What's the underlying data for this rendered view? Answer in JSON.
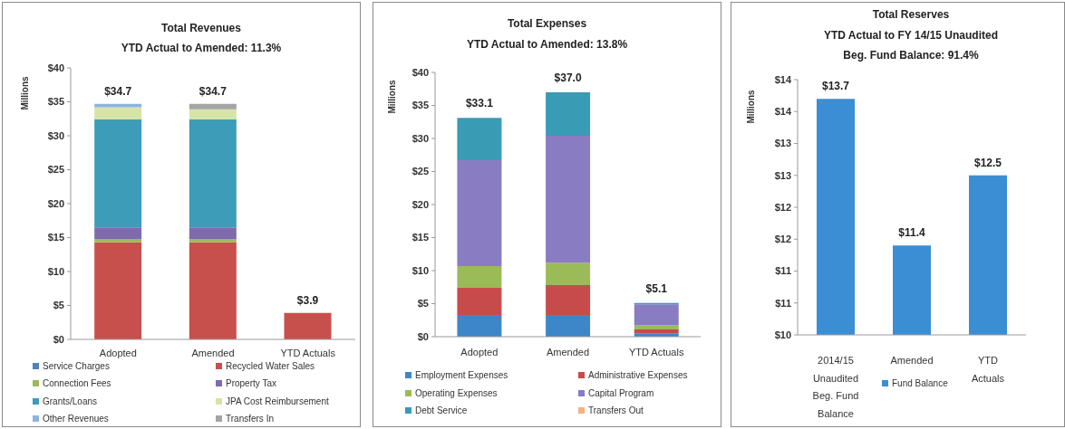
{
  "chart_data": [
    {
      "type": "bar",
      "title": "Total Revenues",
      "subtitle": "YTD Actual to Amended: 11.3%",
      "ylabel": "Millions",
      "categories": [
        "Adopted",
        "Amended",
        "YTD Actuals"
      ],
      "stacked": true,
      "series": [
        {
          "name": "Service Charges",
          "color": "#4f81bd",
          "values": [
            null,
            null,
            null
          ]
        },
        {
          "name": "Recycled Water Sales",
          "color": "#c74f4c",
          "values": [
            14.3,
            14.3,
            3.9
          ]
        },
        {
          "name": "Connection Fees",
          "color": "#9bbb59",
          "values": [
            0.5,
            0.5,
            null
          ]
        },
        {
          "name": "Property Tax",
          "color": "#7f6ab0",
          "values": [
            1.7,
            1.7,
            null
          ]
        },
        {
          "name": "Grants/Loans",
          "color": "#3d9cb8",
          "values": [
            15.9,
            15.9,
            null
          ]
        },
        {
          "name": "JPA Cost Reimbursement",
          "color": "#d7e4a8",
          "values": [
            1.8,
            1.5,
            null
          ]
        },
        {
          "name": "Other Revenues",
          "color": "#8db3e2",
          "values": [
            0.5,
            null,
            null
          ]
        },
        {
          "name": "Transfers In",
          "color": "#a5a5a5",
          "values": [
            null,
            0.8,
            null
          ]
        }
      ],
      "ylim": [
        0,
        40
      ],
      "yticks": [
        {
          "value": 0,
          "label": "$0"
        },
        {
          "value": 5,
          "label": "$5"
        },
        {
          "value": 10,
          "label": "$10"
        },
        {
          "value": 15,
          "label": "$15"
        },
        {
          "value": 20,
          "label": "$20"
        },
        {
          "value": 25,
          "label": "$25"
        },
        {
          "value": 30,
          "label": "$30"
        },
        {
          "value": 35,
          "label": "$35"
        },
        {
          "value": 40,
          "label": "$40"
        }
      ],
      "totals": [
        "$34.7",
        "$34.7",
        "$3.9"
      ],
      "legend": "bottom"
    },
    {
      "type": "bar",
      "title": "Total Expenses",
      "subtitle": "YTD Actual to Amended: 13.8%",
      "ylabel": "Millions",
      "categories": [
        "Adopted",
        "Amended",
        "YTD Actuals"
      ],
      "stacked": true,
      "series": [
        {
          "name": "Employment Expenses",
          "color": "#3d87c9",
          "values": [
            3.3,
            3.3,
            0.5
          ]
        },
        {
          "name": "Administrative Expenses",
          "color": "#c84b4b",
          "values": [
            4.1,
            4.5,
            0.6
          ]
        },
        {
          "name": "Operating Expenses",
          "color": "#9bbb59",
          "values": [
            3.3,
            3.4,
            0.6
          ]
        },
        {
          "name": "Capital Program",
          "color": "#8a7cc2",
          "values": [
            16.0,
            19.2,
            3.2
          ]
        },
        {
          "name": "Debt Service",
          "color": "#3a9bb5",
          "values": [
            6.4,
            6.6,
            0.2
          ]
        },
        {
          "name": "Transfers Out",
          "color": "#f4b183",
          "values": [
            null,
            null,
            null
          ]
        }
      ],
      "ylim": [
        0,
        40
      ],
      "yticks": [
        {
          "value": 0,
          "label": "$0"
        },
        {
          "value": 5,
          "label": "$5"
        },
        {
          "value": 10,
          "label": "$10"
        },
        {
          "value": 15,
          "label": "$15"
        },
        {
          "value": 20,
          "label": "$20"
        },
        {
          "value": 25,
          "label": "$25"
        },
        {
          "value": 30,
          "label": "$30"
        },
        {
          "value": 35,
          "label": "$35"
        },
        {
          "value": 40,
          "label": "$40"
        }
      ],
      "totals": [
        "$33.1",
        "$37.0",
        "$5.1"
      ],
      "legend": "bottom"
    },
    {
      "type": "bar",
      "title": "Total Reserves",
      "subtitle": "YTD Actual to FY 14/15 Unaudited Beg. Fund Balance: 91.4%",
      "ylabel": "Millions",
      "categories": [
        "2014/15 Unaudited Beg. Fund Balance",
        "Amended",
        "YTD Actuals"
      ],
      "series": [
        {
          "name": "Fund Balance",
          "color": "#3b8ed3",
          "values": [
            13.7,
            11.4,
            12.5
          ],
          "value_labels": [
            "$13.7",
            "$11.4",
            "$12.5"
          ]
        }
      ],
      "ylim": [
        10,
        14
      ],
      "yticks": [
        {
          "value": 10,
          "label": "$10"
        },
        {
          "value": 10.5,
          "label": "$11"
        },
        {
          "value": 11,
          "label": "$11"
        },
        {
          "value": 11.5,
          "label": "$12"
        },
        {
          "value": 12,
          "label": "$12"
        },
        {
          "value": 12.5,
          "label": "$13"
        },
        {
          "value": 13,
          "label": "$13"
        },
        {
          "value": 13.5,
          "label": "$14"
        },
        {
          "value": 14,
          "label": "$14"
        }
      ],
      "legend": "bottom"
    }
  ]
}
